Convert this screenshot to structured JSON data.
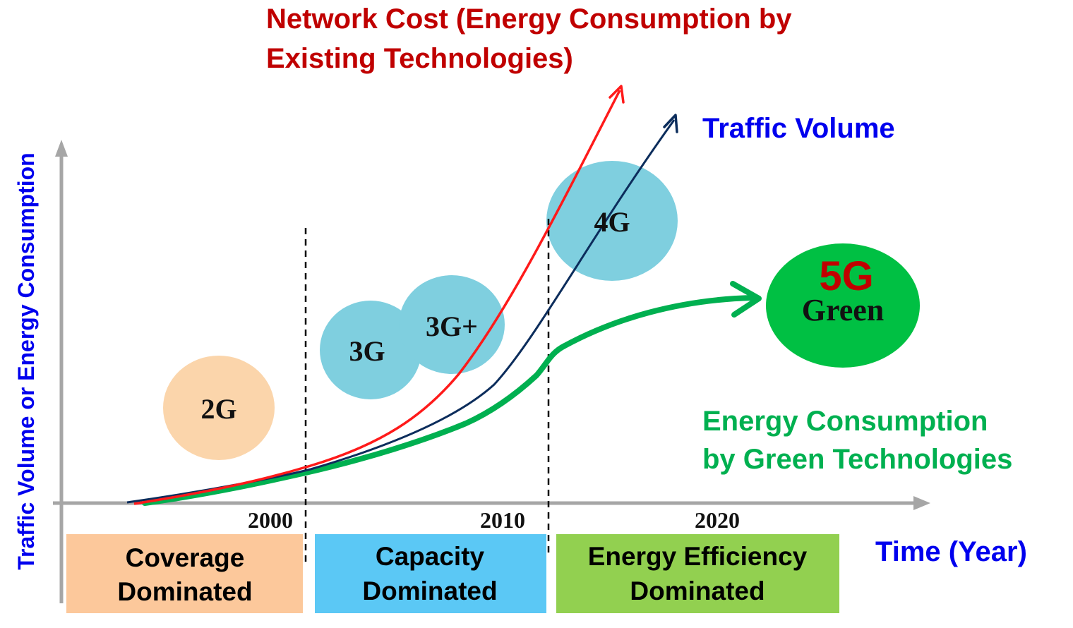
{
  "title": {
    "line1": "Network Cost (Energy Consumption by",
    "line2": "Existing Technologies)"
  },
  "labels": {
    "traffic_volume": "Traffic Volume",
    "green_energy_line1": "Energy Consumption",
    "green_energy_line2": "by Green Technologies",
    "y_axis": "Traffic Volume or Energy Consumption",
    "x_axis": "Time (Year)"
  },
  "years": [
    "2000",
    "2010",
    "2020"
  ],
  "generations": {
    "g2": "2G",
    "g3": "3G",
    "g3plus": "3G+",
    "g4": "4G",
    "g5": "5G",
    "g5_sub": "Green"
  },
  "eras": [
    {
      "line1": "Coverage",
      "line2": "Dominated"
    },
    {
      "line1": "Capacity",
      "line2": "Dominated"
    },
    {
      "line1": "Energy Efficiency",
      "line2": "Dominated"
    }
  ],
  "colors": {
    "red": "#ff1a1a",
    "dark_red": "#c00000",
    "navy": "#0c2d5c",
    "green": "#00b050",
    "blue_text": "#0000ee",
    "axis_gray": "#a6a6a6",
    "bubble_orange": "#fbd5ab",
    "bubble_cyan": "#7fcfdf",
    "bubble_green": "#00c043",
    "era1": "#fcc89b",
    "era2": "#5bc8f5",
    "era3": "#92d050"
  }
}
